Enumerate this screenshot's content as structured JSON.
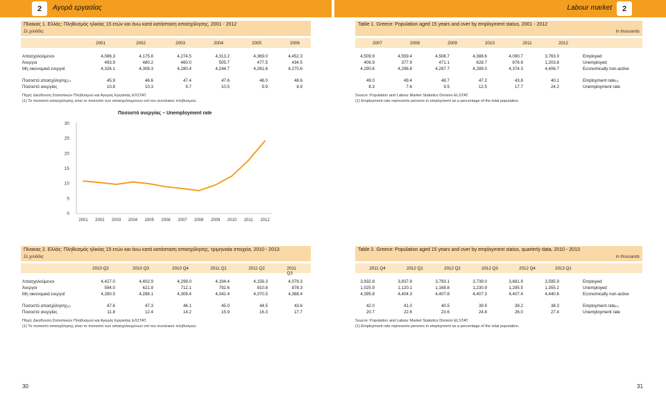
{
  "header": {
    "left_number": "2",
    "left_title": "Αγορά εργασίας",
    "right_title": "Labour market",
    "right_number": "2"
  },
  "table1_gr": {
    "title": "Πίνακας 1. Ελλάς: Πληθυσμός ηλικίας 15 ετών και άνω κατά κατάσταση απασχόλησης, 2001 - 2012",
    "unit": "Σε χιλιάδες",
    "years": [
      "2001",
      "2002",
      "2003",
      "2004",
      "2005",
      "2006"
    ],
    "rows": [
      {
        "label": "Απασχολούμενοι",
        "values": [
          "4,086.3",
          "4,175.8",
          "4,274.5",
          "4,313.2",
          "4,369.0",
          "4,452.3"
        ]
      },
      {
        "label": "Άνεργοι",
        "values": [
          "493.9",
          "480.2",
          "460.0",
          "505.7",
          "477.5",
          "434.5"
        ]
      },
      {
        "label": "Μη οικονομικά ενεργοί",
        "values": [
          "4,326.1",
          "4,308.3",
          "4,280.4",
          "4,244.7",
          "4,261.6",
          "4,270.6"
        ]
      }
    ],
    "rate_rows": [
      {
        "label": "Ποσοστό απασχόλησης",
        "sup": "(1)",
        "values": [
          "45.9",
          "46.6",
          "47.4",
          "47.6",
          "48.0",
          "48.6"
        ]
      },
      {
        "label": "Ποσοστό ανεργίας",
        "sup": "",
        "values": [
          "10.8",
          "10.3",
          "9.7",
          "10.5",
          "9.9",
          "8.9"
        ]
      }
    ],
    "source": "Πηγή: Διεύθυνση Στατιστικών Πληθυσμού και Αγοράς Εργασίας ΕΛΣΤΑΤ.",
    "footnote": "(1) Το ποσοστό απασχόλησης είναι το ποσοστό των απασχολουμένων επί του συνολικού πληθυσμού."
  },
  "table1_en": {
    "title": "Table 1. Greece: Population aged 15 years and over by employment status, 2001 - 2012",
    "unit": "In thousands",
    "years": [
      "2007",
      "2008",
      "2009",
      "2010",
      "2011",
      "2012"
    ],
    "rows": [
      {
        "label": "Employed",
        "values": [
          "4,509.9",
          "4,559.4",
          "4,508.7",
          "4,388.6",
          "4,090.7",
          "3,763.0"
        ]
      },
      {
        "label": "Unemployed",
        "values": [
          "406.9",
          "377.9",
          "471.1",
          "628.7",
          "876.9",
          "1,203.8"
        ]
      },
      {
        "label": "Economically non-active",
        "values": [
          "4,290.6",
          "4,296.8",
          "4,287.7",
          "4,289.0",
          "4,374.3",
          "4,406.7"
        ]
      }
    ],
    "rate_rows": [
      {
        "label": "Employment rate",
        "sup": "(1)",
        "values": [
          "49.0",
          "49.4",
          "48.7",
          "47.2",
          "43.8",
          "40.1"
        ]
      },
      {
        "label": "Unemployment rate",
        "sup": "",
        "values": [
          "8.3",
          "7.6",
          "9.5",
          "12.5",
          "17.7",
          "24.2"
        ]
      }
    ],
    "source": "Source: Population and Labour Market Statistics Division ELSTAT.",
    "footnote": "(1) Employment rate represents persons in employment as a percentage of the total population."
  },
  "chart_data": {
    "type": "line",
    "title": "Ποσοστό ανεργίας – Unemployment rate",
    "xlabel": "",
    "ylabel": "",
    "x": [
      "2001",
      "2002",
      "2003",
      "2004",
      "2005",
      "2006",
      "2007",
      "2008",
      "2009",
      "2010",
      "2011",
      "2012"
    ],
    "series": [
      {
        "values": [
          10.8,
          10.3,
          9.7,
          10.5,
          9.9,
          8.9,
          8.3,
          7.6,
          9.5,
          12.5,
          17.7,
          24.2
        ]
      }
    ],
    "ylim": [
      0,
      30
    ],
    "yticks": [
      "0",
      "5",
      "10",
      "15",
      "20",
      "25",
      "30"
    ],
    "grid": false,
    "line_color": "#F39E1F"
  },
  "table2_gr": {
    "title": "Πίνακας 2. Ελλάς: Πληθυσμός ηλικίας 15 ετών και άνω κατά κατάσταση απασχόλησης, τριμηνιαία στοιχεία, 2010 - 2013",
    "unit": "Σε χιλιάδες",
    "periods": [
      "2010 Q2",
      "2010 Q3",
      "2010 Q4",
      "2011 Q1",
      "2011 Q2",
      "2011 Q3"
    ],
    "rows": [
      {
        "label": "Απασχολούμενοι",
        "values": [
          "4,427.0",
          "4,402.9",
          "4,299.0",
          "4,194.4",
          "4,156.3",
          "4,079.3"
        ]
      },
      {
        "label": "Άνεργοι",
        "values": [
          "594.0",
          "621.9",
          "712.1",
          "792.6",
          "810.8",
          "878.3"
        ]
      },
      {
        "label": "Μη οικονομικά ενεργοί",
        "values": [
          "4,280.5",
          "4,286.1",
          "4,309.4",
          "4,342.4",
          "4,370.5",
          "4,388.4"
        ]
      }
    ],
    "rate_rows": [
      {
        "label": "Ποσοστό απασχόλησης",
        "sup": "(1)",
        "values": [
          "47.6",
          "47.3",
          "46.1",
          "45.0",
          "44.5",
          "43.6"
        ]
      },
      {
        "label": "Ποσοστό ανεργίας",
        "sup": "",
        "values": [
          "11.8",
          "12.4",
          "14.2",
          "15.9",
          "16.3",
          "17.7"
        ]
      }
    ],
    "source": "Πηγή: Διεύθυνση Στατιστικών Πληθυσμού και Αγοράς Εργασίας ΕΛΣΤΑΤ.",
    "footnote": "(1) Το ποσοστό απασχόλησης είναι το ποσοστό των απασχολουμένων επί του συνολικού πληθυσμού."
  },
  "table2_en": {
    "title": "Table 2. Greece: Population aged 15 years and over by employment status, quarterly data, 2010 - 2013",
    "unit": "In thousands",
    "periods": [
      "2011 Q4",
      "2012 Q1",
      "2012 Q2",
      "2012 Q3",
      "2012 Q4",
      "2013 Q1"
    ],
    "rows": [
      {
        "label": "Employed",
        "values": [
          "3,932.8",
          "3,837.9",
          "3,793.1",
          "3,739.0",
          "3,681.9",
          "3,595.9"
        ]
      },
      {
        "label": "Unemployed",
        "values": [
          "1,025.9",
          "1,120.1",
          "1,168.8",
          "1,230.9",
          "1,295.5",
          "1,355.2"
        ]
      },
      {
        "label": "Economically non-active",
        "values": [
          "4,395.8",
          "4,404.3",
          "4,407.8",
          "4,407.3",
          "4,407.4",
          "4,440.6"
        ]
      }
    ],
    "rate_rows": [
      {
        "label": "Employment rate",
        "sup": "(1)",
        "values": [
          "42.0",
          "41.0",
          "40.5",
          "39.9",
          "39.2",
          "38.3"
        ]
      },
      {
        "label": "Unemployment rate",
        "sup": "",
        "values": [
          "20.7",
          "22.6",
          "23.6",
          "24.8",
          "26.0",
          "27.4"
        ]
      }
    ],
    "source": "Source: Population and Labour Market Statistics Division ELSTAT.",
    "footnote": "(1) Employment rate represents persons in employment as a percentage of the total population."
  },
  "pages": {
    "left": "30",
    "right": "31"
  }
}
